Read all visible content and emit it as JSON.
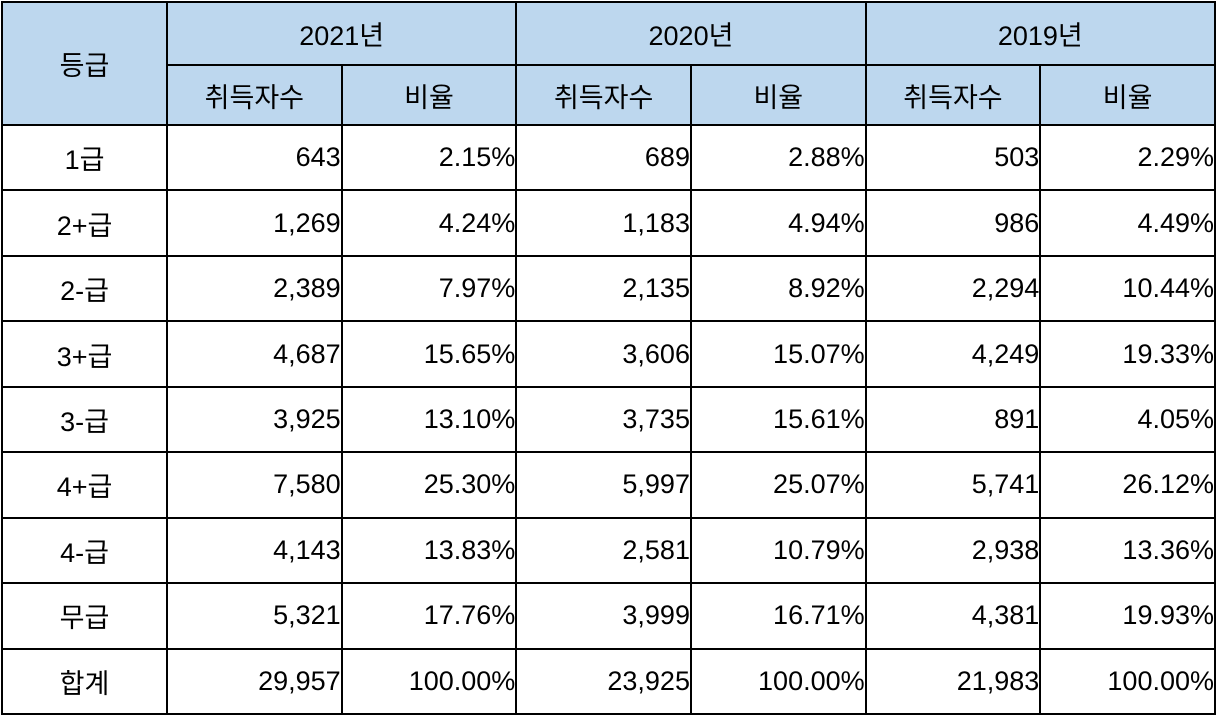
{
  "colors": {
    "header_bg": "#BDD7EE",
    "border": "#000000",
    "text": "#000000",
    "row_bg": "#FFFFFF"
  },
  "table": {
    "grade_header": "등급",
    "year_groups": [
      {
        "year": "2021년",
        "sub": [
          "취득자수",
          "비율"
        ]
      },
      {
        "year": "2020년",
        "sub": [
          "취득자수",
          "비율"
        ]
      },
      {
        "year": "2019년",
        "sub": [
          "취득자수",
          "비율"
        ]
      }
    ],
    "rows": [
      {
        "grade": "1급",
        "values": [
          "643",
          "2.15%",
          "689",
          "2.88%",
          "503",
          "2.29%"
        ]
      },
      {
        "grade": "2+급",
        "values": [
          "1,269",
          "4.24%",
          "1,183",
          "4.94%",
          "986",
          "4.49%"
        ]
      },
      {
        "grade": "2-급",
        "values": [
          "2,389",
          "7.97%",
          "2,135",
          "8.92%",
          "2,294",
          "10.44%"
        ]
      },
      {
        "grade": "3+급",
        "values": [
          "4,687",
          "15.65%",
          "3,606",
          "15.07%",
          "4,249",
          "19.33%"
        ]
      },
      {
        "grade": "3-급",
        "values": [
          "3,925",
          "13.10%",
          "3,735",
          "15.61%",
          "891",
          "4.05%"
        ]
      },
      {
        "grade": "4+급",
        "values": [
          "7,580",
          "25.30%",
          "5,997",
          "25.07%",
          "5,741",
          "26.12%"
        ]
      },
      {
        "grade": "4-급",
        "values": [
          "4,143",
          "13.83%",
          "2,581",
          "10.79%",
          "2,938",
          "13.36%"
        ]
      },
      {
        "grade": "무급",
        "values": [
          "5,321",
          "17.76%",
          "3,999",
          "16.71%",
          "4,381",
          "19.93%"
        ]
      },
      {
        "grade": "합계",
        "values": [
          "29,957",
          "100.00%",
          "23,925",
          "100.00%",
          "21,983",
          "100.00%"
        ]
      }
    ]
  },
  "chart_data": {
    "type": "table",
    "title": "",
    "row_header_label": "등급",
    "column_groups": [
      "2021년",
      "2020년",
      "2019년"
    ],
    "sub_columns": [
      "취득자수",
      "비율"
    ],
    "categories": [
      "1급",
      "2+급",
      "2-급",
      "3+급",
      "3-급",
      "4+급",
      "4-급",
      "무급",
      "합계"
    ],
    "series": [
      {
        "name": "2021년 취득자수",
        "values": [
          643,
          1269,
          2389,
          4687,
          3925,
          7580,
          4143,
          5321,
          29957
        ]
      },
      {
        "name": "2021년 비율(%)",
        "values": [
          2.15,
          4.24,
          7.97,
          15.65,
          13.1,
          25.3,
          13.83,
          17.76,
          100.0
        ]
      },
      {
        "name": "2020년 취득자수",
        "values": [
          689,
          1183,
          2135,
          3606,
          3735,
          5997,
          2581,
          3999,
          23925
        ]
      },
      {
        "name": "2020년 비율(%)",
        "values": [
          2.88,
          4.94,
          8.92,
          15.07,
          15.61,
          25.07,
          10.79,
          16.71,
          100.0
        ]
      },
      {
        "name": "2019년 취득자수",
        "values": [
          503,
          986,
          2294,
          4249,
          891,
          5741,
          2938,
          4381,
          21983
        ]
      },
      {
        "name": "2019년 비율(%)",
        "values": [
          2.29,
          4.49,
          10.44,
          19.33,
          4.05,
          26.12,
          13.36,
          19.93,
          100.0
        ]
      }
    ]
  }
}
